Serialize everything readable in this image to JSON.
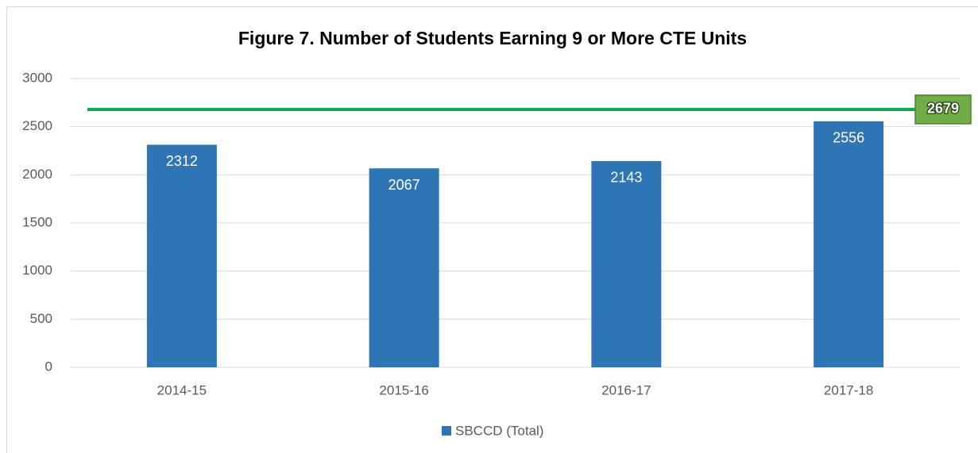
{
  "chart_data": {
    "type": "bar",
    "title": "Figure 7. Number of Students Earning 9 or More CTE Units",
    "categories": [
      "2014-15",
      "2015-16",
      "2016-17",
      "2017-18"
    ],
    "series": [
      {
        "name": "SBCCD (Total)",
        "color": "#2e75b6",
        "values": [
          2312,
          2067,
          2143,
          2556
        ]
      }
    ],
    "ylim": [
      0,
      3000
    ],
    "yticks": [
      0,
      500,
      1000,
      1500,
      2000,
      2500,
      3000
    ],
    "grid": true,
    "reference_line": {
      "value": 2679,
      "color": "#00b050"
    },
    "legend": "bottom"
  }
}
